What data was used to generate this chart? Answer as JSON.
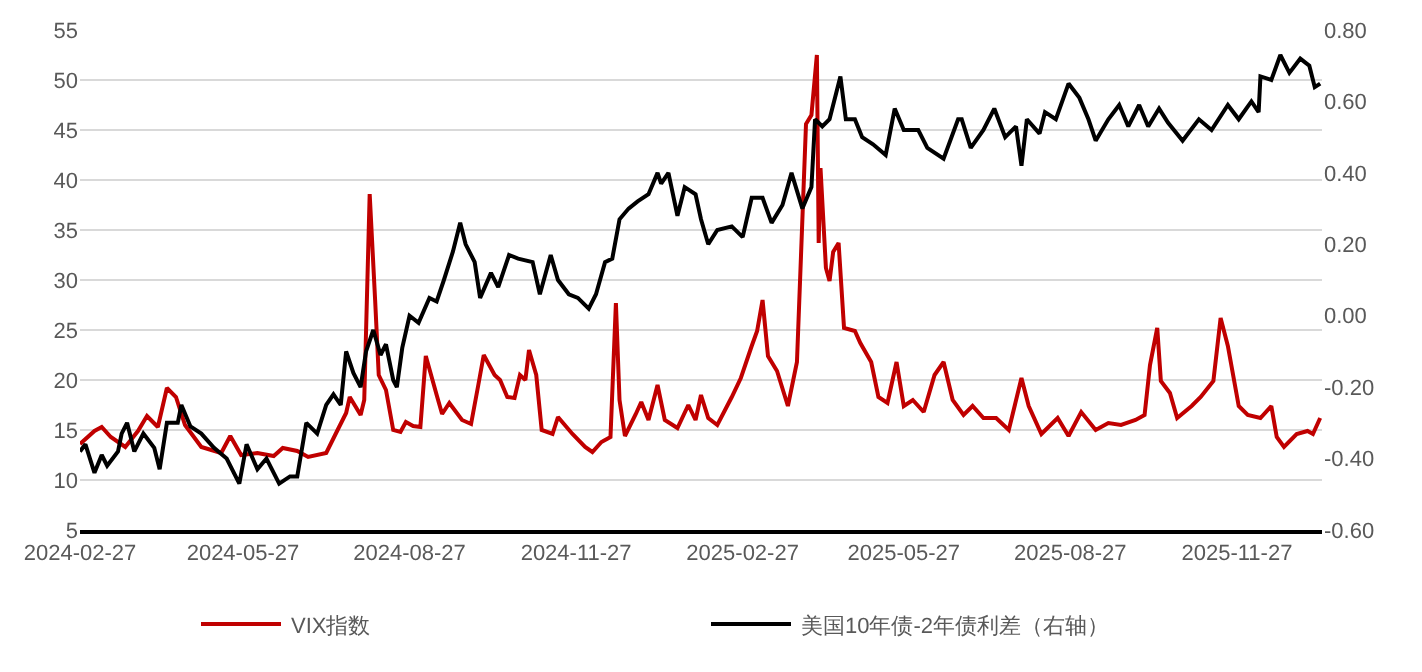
{
  "chart_data": {
    "type": "line",
    "xlim": [
      "2024-02-27",
      "2026-01-13"
    ],
    "xticks": [
      "2024-02-27",
      "2024-05-27",
      "2024-08-27",
      "2024-11-27",
      "2025-02-27",
      "2025-05-27",
      "2025-08-27",
      "2025-11-27"
    ],
    "ylim": [
      5,
      55
    ],
    "yticks": [
      5,
      10,
      15,
      20,
      25,
      30,
      35,
      40,
      45,
      50,
      55
    ],
    "y2lim": [
      -0.6,
      0.8
    ],
    "y2ticks": [
      {
        "value": -0.6,
        "label": "-0.60"
      },
      {
        "value": -0.4,
        "label": "-0.40"
      },
      {
        "value": -0.2,
        "label": "-0.20"
      },
      {
        "value": 0,
        "label": "0.00"
      },
      {
        "value": 0.2,
        "label": "0.20"
      },
      {
        "value": 0.4,
        "label": "0.40"
      },
      {
        "value": 0.6,
        "label": "0.60"
      },
      {
        "value": 0.8,
        "label": "0.80"
      }
    ],
    "grid": "y",
    "legend": "bottom",
    "marker": "none",
    "line_style": "solid",
    "series": [
      {
        "name": "VIX指数",
        "color": "#c00000",
        "x": [
          "2024-02-27",
          "2024-03-06",
          "2024-03-10",
          "2024-03-15",
          "2024-03-23",
          "2024-03-30",
          "2024-04-04",
          "2024-04-10",
          "2024-04-15",
          "2024-04-20",
          "2024-04-25",
          "2024-05-04",
          "2024-05-15",
          "2024-05-20",
          "2024-05-26",
          "2024-06-04",
          "2024-06-13",
          "2024-06-18",
          "2024-06-26",
          "2024-07-02",
          "2024-07-12",
          "2024-07-18",
          "2024-07-23",
          "2024-07-25",
          "2024-07-31",
          "2024-08-02",
          "2024-08-05",
          "2024-08-08",
          "2024-08-10",
          "2024-08-14",
          "2024-08-18",
          "2024-08-22",
          "2024-08-25",
          "2024-08-29",
          "2024-09-02",
          "2024-09-05",
          "2024-09-11",
          "2024-09-14",
          "2024-09-18",
          "2024-09-25",
          "2024-09-30",
          "2024-10-04",
          "2024-10-07",
          "2024-10-13",
          "2024-10-16",
          "2024-10-20",
          "2024-10-24",
          "2024-10-27",
          "2024-10-30",
          "2024-11-01",
          "2024-11-05",
          "2024-11-08",
          "2024-11-14",
          "2024-11-17",
          "2024-11-25",
          "2024-12-02",
          "2024-12-06",
          "2024-12-11",
          "2024-12-16",
          "2024-12-19",
          "2024-12-21",
          "2024-12-24",
          "2024-12-30",
          "2025-01-02",
          "2025-01-06",
          "2025-01-11",
          "2025-01-15",
          "2025-01-22",
          "2025-01-28",
          "2025-02-01",
          "2025-02-04",
          "2025-02-08",
          "2025-02-13",
          "2025-02-21",
          "2025-02-26",
          "2025-03-04",
          "2025-03-07",
          "2025-03-10",
          "2025-03-13",
          "2025-03-18",
          "2025-03-24",
          "2025-03-29",
          "2025-04-03",
          "2025-04-06",
          "2025-04-09",
          "2025-04-10",
          "2025-04-11",
          "2025-04-14",
          "2025-04-16",
          "2025-04-18",
          "2025-04-21",
          "2025-04-24",
          "2025-04-30",
          "2025-05-03",
          "2025-05-09",
          "2025-05-13",
          "2025-05-18",
          "2025-05-23",
          "2025-05-27",
          "2025-06-01",
          "2025-06-07",
          "2025-06-13",
          "2025-06-18",
          "2025-06-23",
          "2025-06-29",
          "2025-07-04",
          "2025-07-10",
          "2025-07-17",
          "2025-07-24",
          "2025-07-31",
          "2025-08-04",
          "2025-08-11",
          "2025-08-20",
          "2025-08-26",
          "2025-09-02",
          "2025-09-10",
          "2025-09-17",
          "2025-09-24",
          "2025-10-02",
          "2025-10-07",
          "2025-10-10",
          "2025-10-14",
          "2025-10-16",
          "2025-10-21",
          "2025-10-25",
          "2025-11-02",
          "2025-11-07",
          "2025-11-14",
          "2025-11-18",
          "2025-11-22",
          "2025-11-28",
          "2025-12-03",
          "2025-12-10",
          "2025-12-16",
          "2025-12-19",
          "2025-12-23",
          "2025-12-30",
          "2026-01-05",
          "2026-01-08",
          "2026-01-12"
        ],
        "values": [
          13.6,
          14.9,
          15.3,
          14.3,
          13.3,
          14.9,
          16.4,
          15.3,
          19.2,
          18.3,
          15.5,
          13.3,
          12.7,
          14.4,
          12.5,
          12.7,
          12.4,
          13.2,
          12.9,
          12.3,
          12.7,
          14.9,
          16.7,
          18.3,
          16.5,
          18,
          38.6,
          28,
          20.5,
          19,
          15,
          14.8,
          15.8,
          15.4,
          15.3,
          22.4,
          18.5,
          16.6,
          17.7,
          16,
          15.6,
          19.5,
          22.5,
          20.5,
          20,
          18.3,
          18.2,
          20.5,
          20,
          23,
          20.5,
          15,
          14.6,
          16.3,
          14.6,
          13.3,
          12.8,
          13.8,
          14.3,
          27.7,
          18,
          14.4,
          16.6,
          17.8,
          16,
          19.5,
          16,
          15.2,
          17.5,
          16,
          18.5,
          16.2,
          15.5,
          18.3,
          20.2,
          23.4,
          24.9,
          28,
          22.4,
          20.9,
          17.4,
          21.8,
          45.6,
          46.5,
          52.5,
          33.7,
          41.2,
          31.2,
          29.9,
          32.8,
          33.7,
          25.2,
          24.9,
          23.7,
          21.8,
          18.3,
          17.7,
          21.8,
          17.4,
          18,
          16.8,
          20.5,
          21.8,
          18,
          16.5,
          17.4,
          16.2,
          16.2,
          15,
          20.2,
          17.4,
          14.6,
          16.2,
          14.4,
          16.8,
          15,
          15.7,
          15.5,
          16,
          16.5,
          21.5,
          25.2,
          19.9,
          18.7,
          16.2,
          17.4,
          18.3,
          19.9,
          26.2,
          23.4,
          17.4,
          16.5,
          16.2,
          17.4,
          14.3,
          13.3,
          14.6,
          14.9,
          14.6,
          16.2
        ]
      },
      {
        "name": "美国10年债-2年债利差（右轴）",
        "color": "#000000",
        "axis": "y2",
        "x": [
          "2024-02-27",
          "2024-03-01",
          "2024-03-06",
          "2024-03-10",
          "2024-03-13",
          "2024-03-19",
          "2024-03-21",
          "2024-03-24",
          "2024-03-28",
          "2024-04-02",
          "2024-04-08",
          "2024-04-11",
          "2024-04-15",
          "2024-04-21",
          "2024-04-23",
          "2024-04-28",
          "2024-05-04",
          "2024-05-11",
          "2024-05-18",
          "2024-05-25",
          "2024-05-29",
          "2024-06-04",
          "2024-06-09",
          "2024-06-16",
          "2024-06-22",
          "2024-06-26",
          "2024-06-28",
          "2024-07-01",
          "2024-07-07",
          "2024-07-12",
          "2024-07-16",
          "2024-07-20",
          "2024-07-23",
          "2024-07-27",
          "2024-07-31",
          "2024-08-03",
          "2024-08-07",
          "2024-08-11",
          "2024-08-14",
          "2024-08-18",
          "2024-08-20",
          "2024-08-23",
          "2024-08-27",
          "2024-09-01",
          "2024-09-07",
          "2024-09-11",
          "2024-09-15",
          "2024-09-20",
          "2024-09-24",
          "2024-09-27",
          "2024-10-02",
          "2024-10-05",
          "2024-10-11",
          "2024-10-15",
          "2024-10-21",
          "2024-10-26",
          "2024-11-03",
          "2024-11-07",
          "2024-11-13",
          "2024-11-17",
          "2024-11-23",
          "2024-11-28",
          "2024-12-04",
          "2024-12-08",
          "2024-12-13",
          "2024-12-17",
          "2024-12-21",
          "2024-12-26",
          "2024-12-31",
          "2025-01-06",
          "2025-01-11",
          "2025-01-13",
          "2025-01-17",
          "2025-01-22",
          "2025-01-26",
          "2025-02-01",
          "2025-02-04",
          "2025-02-08",
          "2025-02-13",
          "2025-02-21",
          "2025-02-27",
          "2025-03-04",
          "2025-03-10",
          "2025-03-15",
          "2025-03-21",
          "2025-03-26",
          "2025-04-01",
          "2025-04-06",
          "2025-04-08",
          "2025-04-12",
          "2025-04-16",
          "2025-04-22",
          "2025-04-25",
          "2025-04-30",
          "2025-05-04",
          "2025-05-10",
          "2025-05-17",
          "2025-05-22",
          "2025-05-27",
          "2025-06-04",
          "2025-06-09",
          "2025-06-18",
          "2025-06-26",
          "2025-06-28",
          "2025-07-03",
          "2025-07-10",
          "2025-07-16",
          "2025-07-22",
          "2025-07-28",
          "2025-07-31",
          "2025-08-03",
          "2025-08-10",
          "2025-08-13",
          "2025-08-19",
          "2025-08-26",
          "2025-09-01",
          "2025-09-06",
          "2025-09-10",
          "2025-09-17",
          "2025-09-23",
          "2025-09-28",
          "2025-10-04",
          "2025-10-09",
          "2025-10-15",
          "2025-10-20",
          "2025-10-28",
          "2025-11-06",
          "2025-11-13",
          "2025-11-22",
          "2025-11-28",
          "2025-12-05",
          "2025-12-09",
          "2025-12-10",
          "2025-12-16",
          "2025-12-21",
          "2025-12-26",
          "2026-01-01",
          "2026-01-06",
          "2026-01-09",
          "2026-01-12"
        ],
        "values": [
          -0.38,
          -0.36,
          -0.44,
          -0.39,
          -0.42,
          -0.38,
          -0.33,
          -0.3,
          -0.38,
          -0.33,
          -0.37,
          -0.43,
          -0.3,
          -0.3,
          -0.25,
          -0.31,
          -0.33,
          -0.37,
          -0.4,
          -0.47,
          -0.36,
          -0.43,
          -0.4,
          -0.47,
          -0.45,
          -0.45,
          -0.39,
          -0.3,
          -0.33,
          -0.25,
          -0.22,
          -0.25,
          -0.1,
          -0.16,
          -0.2,
          -0.1,
          -0.04,
          -0.11,
          -0.08,
          -0.18,
          -0.2,
          -0.09,
          0.0,
          -0.02,
          0.05,
          0.04,
          0.1,
          0.18,
          0.26,
          0.2,
          0.15,
          0.05,
          0.12,
          0.08,
          0.17,
          0.16,
          0.15,
          0.06,
          0.17,
          0.1,
          0.06,
          0.05,
          0.02,
          0.06,
          0.15,
          0.16,
          0.27,
          0.3,
          0.32,
          0.34,
          0.4,
          0.37,
          0.4,
          0.28,
          0.36,
          0.34,
          0.27,
          0.2,
          0.24,
          0.25,
          0.22,
          0.33,
          0.33,
          0.26,
          0.31,
          0.4,
          0.3,
          0.36,
          0.55,
          0.53,
          0.55,
          0.67,
          0.55,
          0.55,
          0.5,
          0.48,
          0.45,
          0.58,
          0.52,
          0.52,
          0.47,
          0.44,
          0.55,
          0.55,
          0.47,
          0.52,
          0.58,
          0.5,
          0.53,
          0.42,
          0.55,
          0.51,
          0.57,
          0.55,
          0.65,
          0.61,
          0.55,
          0.49,
          0.55,
          0.59,
          0.53,
          0.59,
          0.53,
          0.58,
          0.54,
          0.49,
          0.55,
          0.52,
          0.59,
          0.55,
          0.6,
          0.57,
          0.67,
          0.66,
          0.73,
          0.68,
          0.72,
          0.7,
          0.64,
          0.65
        ]
      }
    ]
  }
}
